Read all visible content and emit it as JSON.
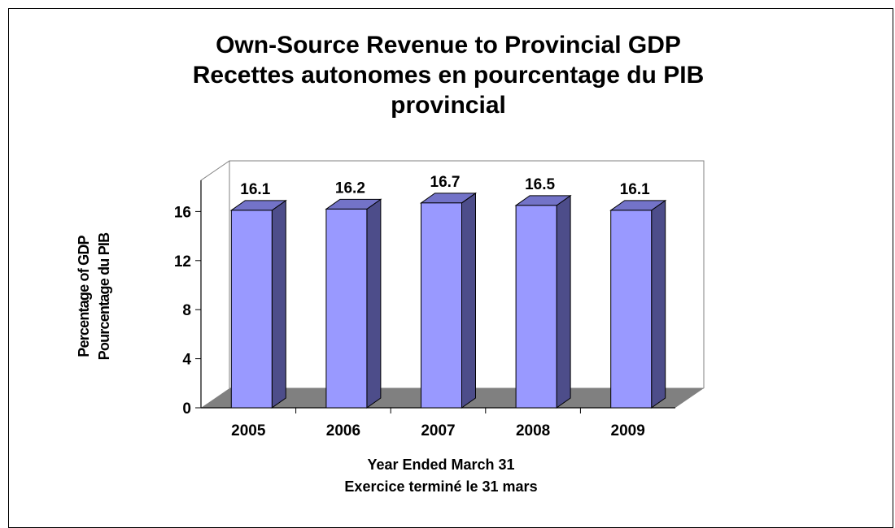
{
  "chart_data": {
    "type": "bar",
    "title_lines": [
      "Own-Source Revenue to Provincial GDP",
      "Recettes autonomes en pourcentage du PIB",
      "provincial"
    ],
    "xlabel_lines": [
      "Year Ended March 31",
      "Exercice terminé le 31 mars"
    ],
    "ylabel_lines": [
      "Percentage of GDP",
      "Pourcentage du PIB"
    ],
    "categories": [
      "2005",
      "2006",
      "2007",
      "2008",
      "2009"
    ],
    "values": [
      16.1,
      16.2,
      16.7,
      16.5,
      16.1
    ],
    "data_labels": [
      "16.1",
      "16.2",
      "16.7",
      "16.5",
      "16.1"
    ],
    "y_ticks": [
      "0",
      "4",
      "8",
      "12",
      "16"
    ],
    "ylim": [
      0,
      19
    ],
    "grid": false,
    "legend": false,
    "colors": {
      "bar_front": "#9999ff",
      "bar_side": "#4d4d8a",
      "bar_top": "#7373c8",
      "floor": "#808080",
      "outline": "#000000"
    }
  }
}
